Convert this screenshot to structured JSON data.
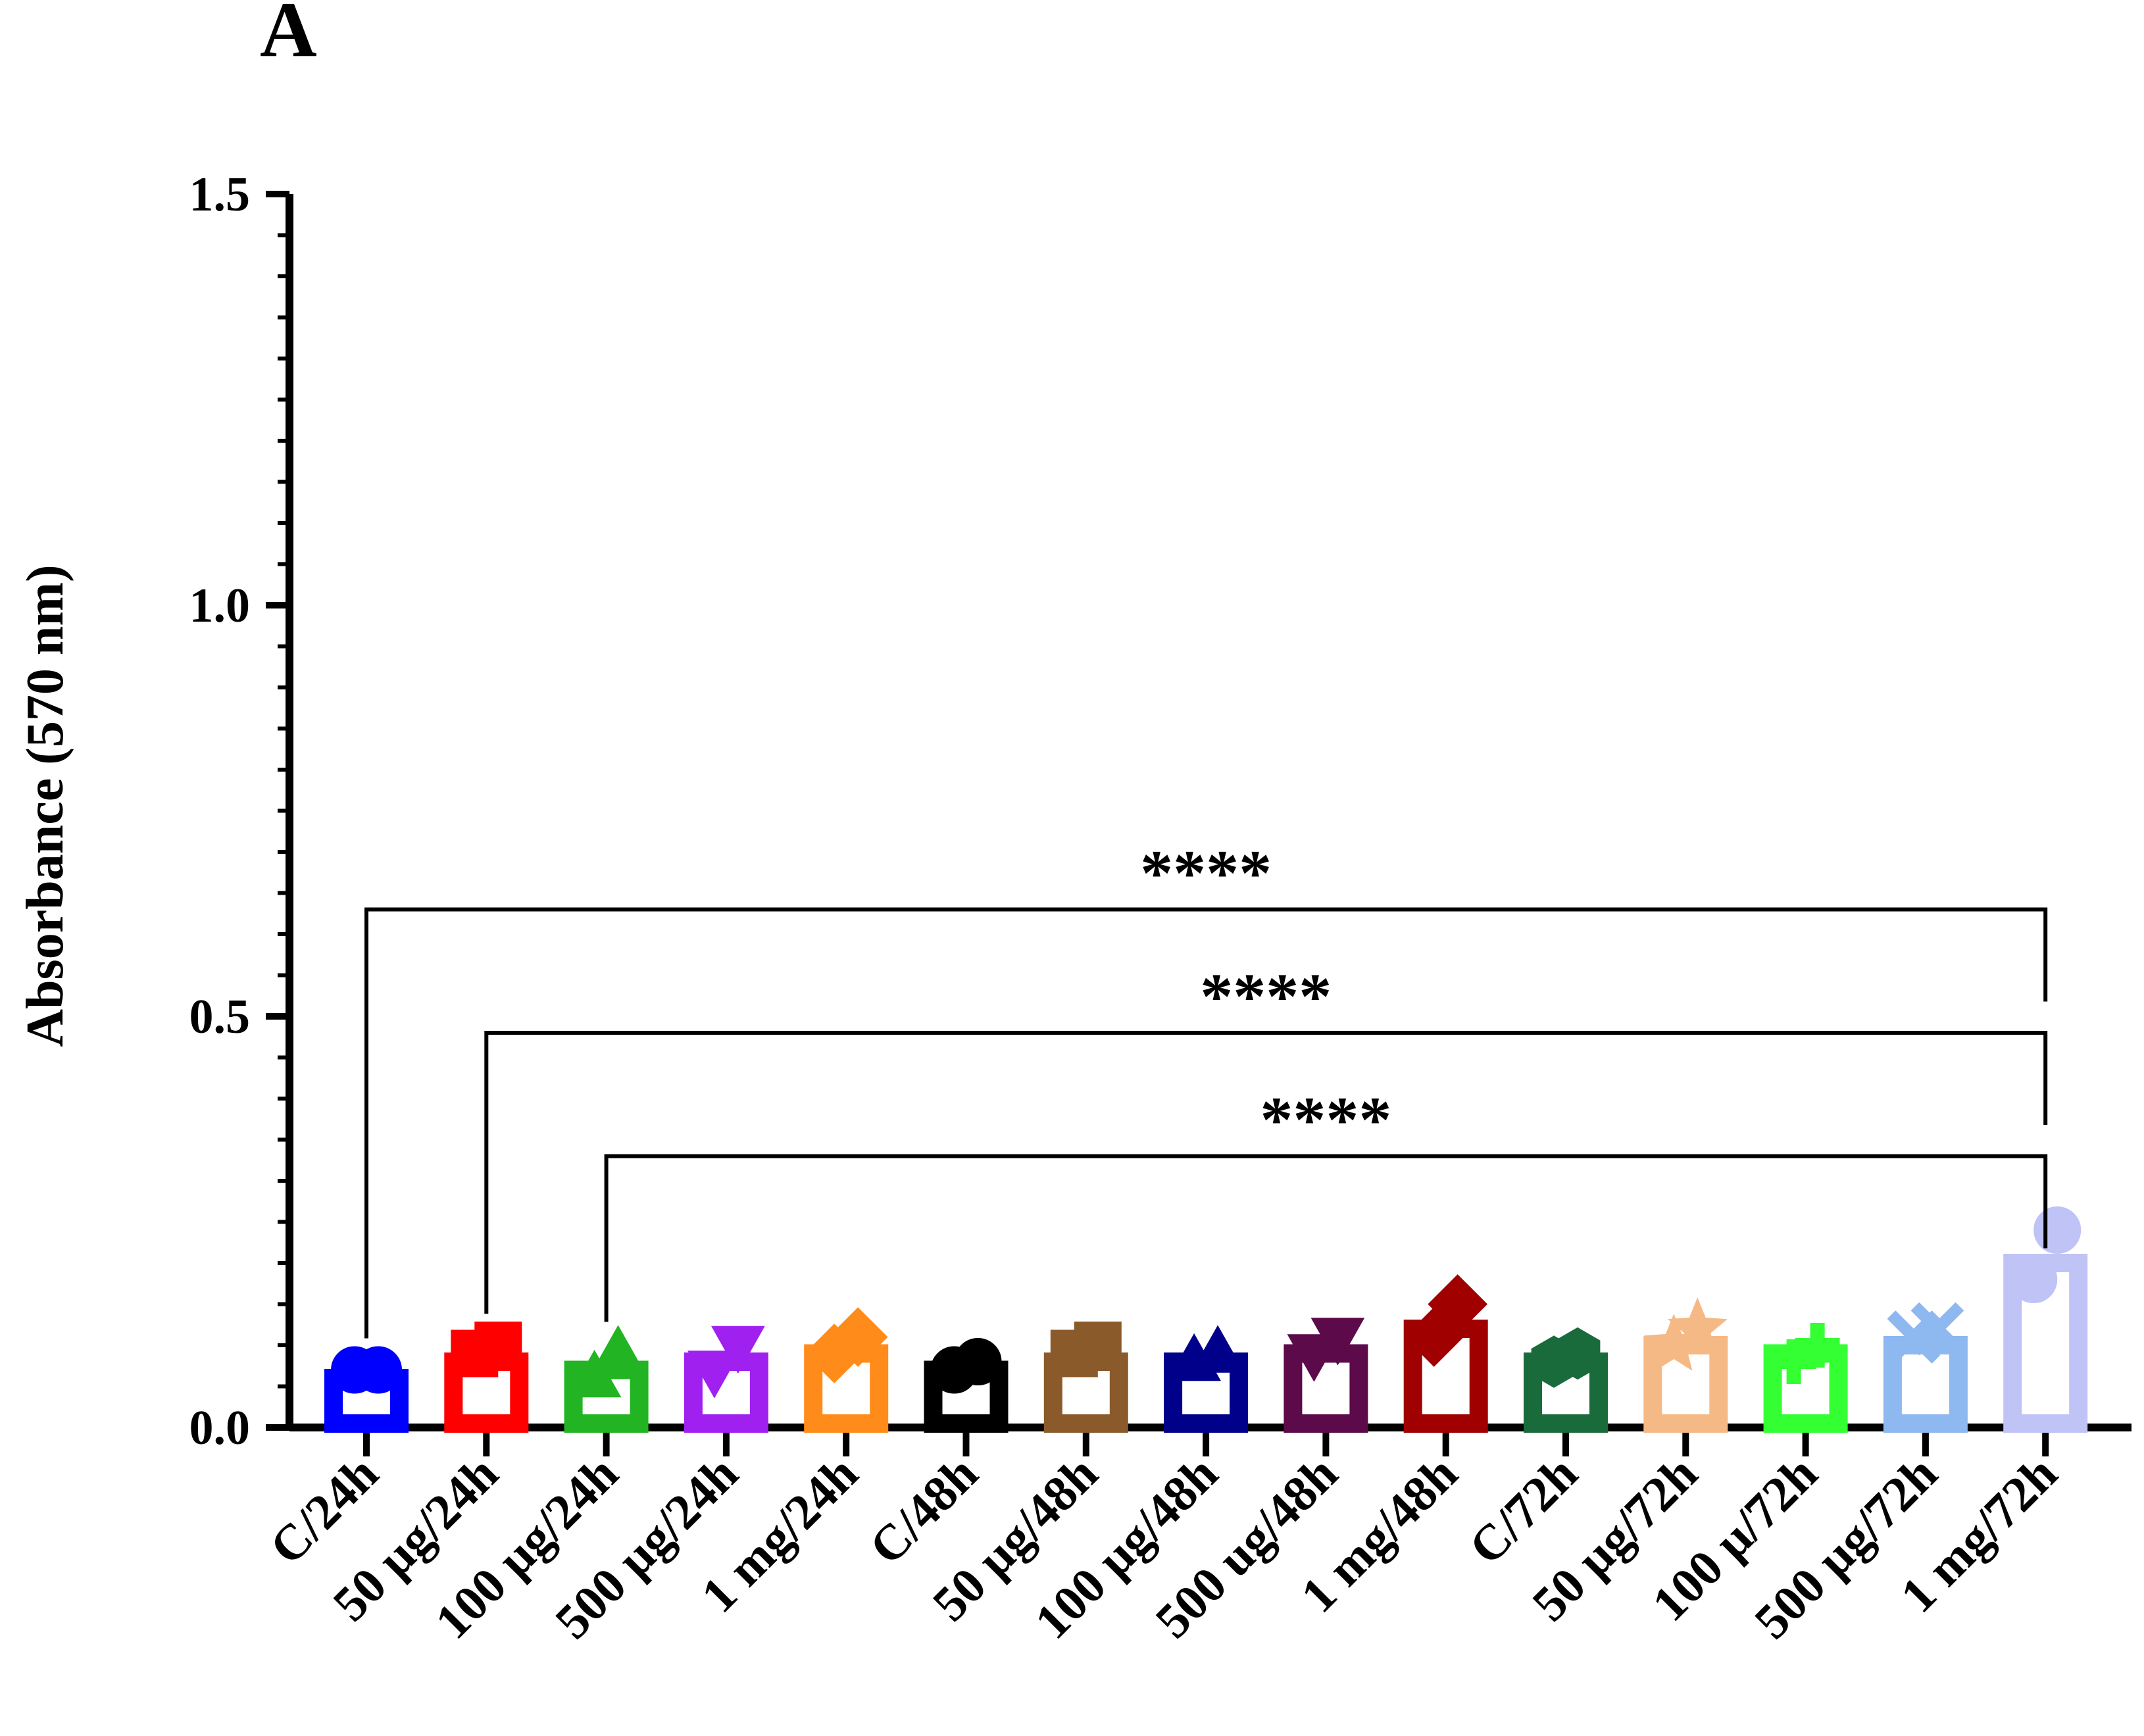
{
  "panel_label": "A",
  "chart_data": {
    "type": "bar",
    "title": "",
    "xlabel": "",
    "ylabel": "Absorbance (570 nm)",
    "ylim": [
      0,
      1.5
    ],
    "yticks": [
      "0.0",
      "0.5",
      "1.0",
      "1.5"
    ],
    "ytick_values": [
      0,
      0.5,
      1.0,
      1.5
    ],
    "categories": [
      "C/24h",
      "50 µg/24h",
      "100 µg/24h",
      "500 µg/24h",
      "1 mg/24h",
      "C/48h",
      "50 µg/48h",
      "100 µg/48h",
      "500 ug/48h",
      "1 mg/48h",
      "C/72h",
      "50 µg/72h",
      "100 µ/72h",
      "500 µg/72h",
      "1 mg/72h"
    ],
    "values": [
      0.06,
      0.08,
      0.07,
      0.08,
      0.09,
      0.07,
      0.08,
      0.08,
      0.09,
      0.12,
      0.08,
      0.1,
      0.09,
      0.1,
      0.2
    ],
    "points": [
      [
        0.07,
        0.07
      ],
      [
        0.09,
        0.1
      ],
      [
        0.06,
        0.09
      ],
      [
        0.07,
        0.1
      ],
      [
        0.09,
        0.11
      ],
      [
        0.07,
        0.08
      ],
      [
        0.09,
        0.1
      ],
      [
        0.08,
        0.09
      ],
      [
        0.09,
        0.11
      ],
      [
        0.11,
        0.15
      ],
      [
        0.08,
        0.09
      ],
      [
        0.1,
        0.12
      ],
      [
        0.08,
        0.1
      ],
      [
        0.11,
        0.12
      ],
      [
        0.18,
        0.24
      ]
    ],
    "markers": [
      "circle",
      "square",
      "triangle-up",
      "triangle-down",
      "diamond",
      "circle",
      "square",
      "triangle-up",
      "triangle-down",
      "diamond",
      "hexagon",
      "star",
      "plus",
      "x",
      "circle"
    ],
    "colors": [
      "#0000FF",
      "#FF0000",
      "#22B422",
      "#A020F0",
      "#FF8C1A",
      "#000000",
      "#8B5A2B",
      "#00008B",
      "#5C0A4A",
      "#A00000",
      "#1A6B3C",
      "#F5B985",
      "#33FF33",
      "#8DB8F0",
      "#BFC3F5"
    ],
    "significance": [
      {
        "from": 0,
        "to": 14,
        "y": 0.63,
        "label": "****"
      },
      {
        "from": 1,
        "to": 14,
        "y": 0.48,
        "label": "****"
      },
      {
        "from": 2,
        "to": 14,
        "y": 0.33,
        "label": "****"
      }
    ]
  }
}
